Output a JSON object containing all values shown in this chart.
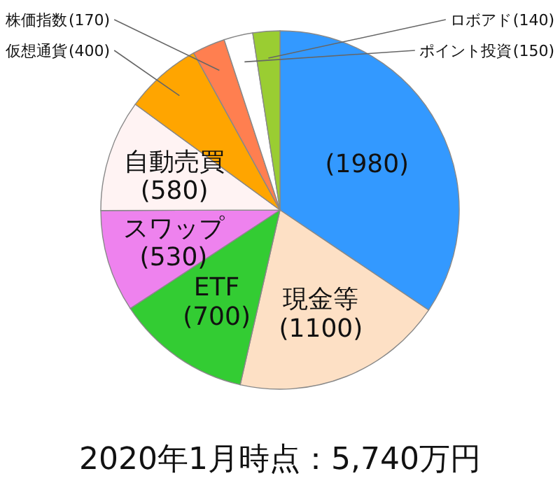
{
  "chart_data": {
    "type": "pie",
    "title": "2020年1月時点：5,740万円",
    "categories": [
      null,
      "現金等",
      "ETF",
      "スワップ",
      "自動売買",
      "仮想通貨",
      "株価指数",
      "ポイント投資",
      "ロボアド"
    ],
    "values": [
      1980,
      1100,
      700,
      530,
      580,
      400,
      170,
      150,
      140
    ],
    "colors": [
      "#3399ff",
      "#fde0c5",
      "#33cc33",
      "#ee82ee",
      "#fff3f3",
      "#ffa500",
      "#ff7f50",
      "#ffffff",
      "#9acd32"
    ],
    "value_labels": [
      "(1980)",
      "(1100)",
      "(700)",
      "(530)",
      "(580)",
      "(400)",
      "(170)",
      "(150)",
      "(140)"
    ]
  }
}
